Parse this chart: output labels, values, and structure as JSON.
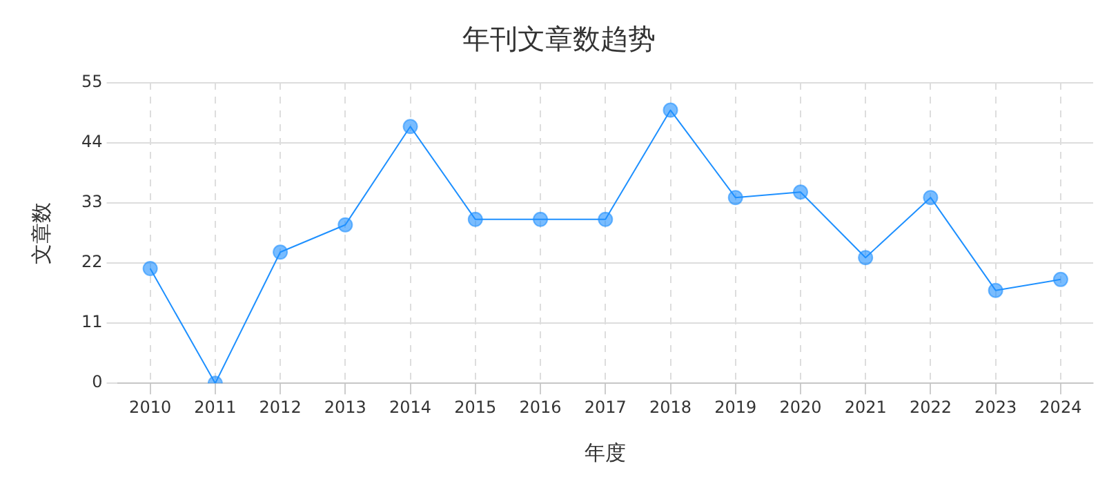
{
  "chart_data": {
    "type": "line",
    "title": "年刊文章数趋势",
    "xlabel": "年度",
    "ylabel": "文章数",
    "categories": [
      "2010",
      "2011",
      "2012",
      "2013",
      "2014",
      "2015",
      "2016",
      "2017",
      "2018",
      "2019",
      "2020",
      "2021",
      "2022",
      "2023",
      "2024"
    ],
    "series": [
      {
        "color": "#1e90ff",
        "values": [
          21,
          0,
          24,
          29,
          47,
          30,
          30,
          30,
          50,
          34,
          35,
          23,
          34,
          17,
          19
        ]
      }
    ],
    "ylim": [
      0,
      55
    ],
    "yticks": [
      0,
      11,
      22,
      33,
      44,
      55
    ],
    "grid": true,
    "legend": false,
    "marker": "circle",
    "line_style": "solid"
  }
}
